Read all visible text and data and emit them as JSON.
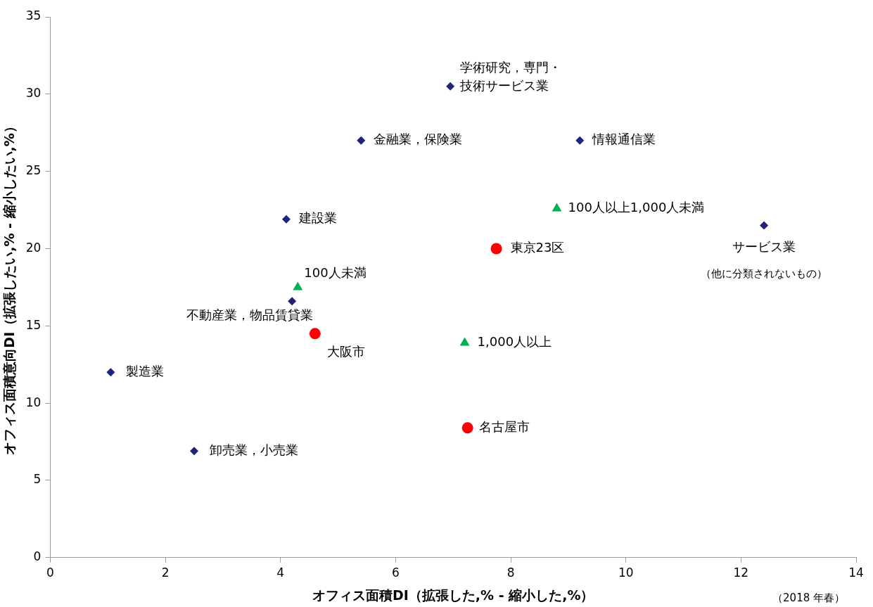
{
  "chart_data": {
    "type": "scatter",
    "xlabel": "オフィス面積DI（拡張した,% - 縮小した,%）",
    "ylabel": "オフィス面積意向DI（拡張したい,% - 縮小したい,%）",
    "xlim": [
      0,
      14
    ],
    "xticks": [
      0,
      2,
      4,
      6,
      8,
      10,
      12,
      14
    ],
    "ylim": [
      0,
      35
    ],
    "yticks": [
      0,
      5,
      10,
      15,
      20,
      25,
      30,
      35
    ],
    "grid": false,
    "legend": false,
    "series": [
      {
        "color": "#1f2379",
        "marker": "diamond",
        "x": [
          6.95,
          5.4,
          9.2,
          4.1,
          12.4,
          4.2,
          1.05,
          2.5
        ],
        "values": [
          30.5,
          27.0,
          27.0,
          21.9,
          21.5,
          16.6,
          12.0,
          6.9
        ]
      },
      {
        "color": "#ff0000",
        "marker": "circle",
        "x": [
          7.75,
          4.6,
          7.25
        ],
        "values": [
          20.0,
          14.5,
          8.4
        ]
      },
      {
        "color": "#00b050",
        "marker": "triangle",
        "x": [
          8.8,
          4.3,
          7.2
        ],
        "values": [
          22.6,
          17.5,
          13.9
        ]
      }
    ],
    "annotations": [
      {
        "text": "学術研究，専門・技術サービス業",
        "x": 6.95,
        "y": 30.5
      },
      {
        "text": "金融業，保険業",
        "x": 5.4,
        "y": 27.0
      },
      {
        "text": "情報通信業",
        "x": 9.2,
        "y": 27.0
      },
      {
        "text": "建設業",
        "x": 4.1,
        "y": 21.9
      },
      {
        "text": "サービス業（他に分類されないもの）",
        "x": 12.4,
        "y": 21.5
      },
      {
        "text": "不動産業，物品賃貸業",
        "x": 4.2,
        "y": 16.6
      },
      {
        "text": "製造業",
        "x": 1.05,
        "y": 12.0
      },
      {
        "text": "卸売業，小売業",
        "x": 2.5,
        "y": 6.9
      },
      {
        "text": "東京23区",
        "x": 7.75,
        "y": 20.0
      },
      {
        "text": "大阪市",
        "x": 4.6,
        "y": 14.5
      },
      {
        "text": "名古屋市",
        "x": 7.25,
        "y": 8.4
      },
      {
        "text": "100人以上1,000人未満",
        "x": 8.8,
        "y": 22.6
      },
      {
        "text": "100人未満",
        "x": 4.3,
        "y": 17.5
      },
      {
        "text": "1,000人以上",
        "x": 7.2,
        "y": 13.9
      },
      "（2018 年春）"
    ]
  }
}
